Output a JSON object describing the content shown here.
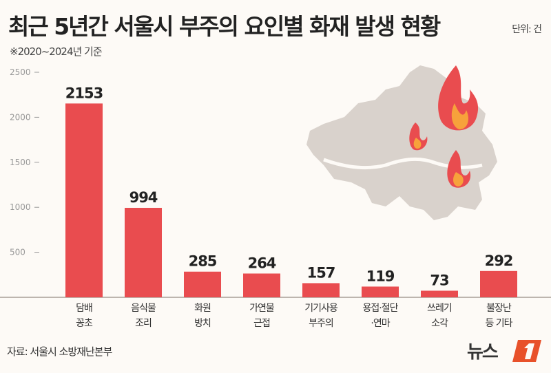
{
  "title": "최근 5년간 서울시 부주의 요인별 화재 발생 현황",
  "subtitle": "※2020~2024년 기준",
  "unit": "단위: 건",
  "source": "자료: 서울시 소방재난본부",
  "logo": "뉴스1",
  "colors": {
    "bar": "#e94c4f",
    "map": "#d9d2cc",
    "background": "#fdfaf6"
  },
  "chart_data": {
    "type": "bar",
    "title": "최근 5년간 서울시 부주의 요인별 화재 발생 현황",
    "categories": [
      [
        "담배",
        "꽁초"
      ],
      [
        "음식물",
        "조리"
      ],
      [
        "화원",
        "방치"
      ],
      [
        "가연물",
        "근접"
      ],
      [
        "기기사용",
        "부주의"
      ],
      [
        "용접·절단",
        "·연마"
      ],
      [
        "쓰레기",
        "소각"
      ],
      [
        "불장난",
        "등 기타"
      ]
    ],
    "values": [
      2153,
      994,
      285,
      264,
      157,
      119,
      73,
      292
    ],
    "yticks": [
      500,
      1000,
      1500,
      2000,
      2500
    ],
    "ylim": [
      0,
      2500
    ],
    "grid": false,
    "ylabel": "",
    "xlabel": ""
  }
}
